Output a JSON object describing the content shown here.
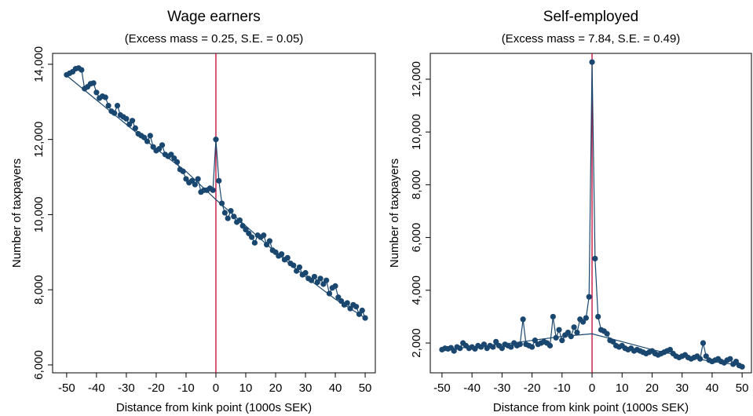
{
  "chart_data": [
    {
      "type": "line",
      "title": "Wage earners",
      "subtitle": "(Excess mass = 0.25, S.E. = 0.05)",
      "x_label": "Distance from kink point (1000s SEK)",
      "y_label": "Number of taxpayers",
      "xlim": [
        -54.7,
        53.4
      ],
      "ylim": [
        5790,
        14290
      ],
      "xticks": [
        -50,
        -40,
        -30,
        -20,
        -10,
        0,
        10,
        20,
        30,
        40,
        50
      ],
      "yticks": [
        {
          "value": 6000,
          "label": "6,000"
        },
        {
          "value": 8000,
          "label": "8,000"
        },
        {
          "value": 10000,
          "label": "10,000"
        },
        {
          "value": 12000,
          "label": "12,000"
        },
        {
          "value": 14000,
          "label": "14,000"
        }
      ],
      "vline": 0,
      "vline_color": "#c10534",
      "series": [
        {
          "color": "#1a476f",
          "markers": true,
          "x": [
            -50,
            -49,
            -48,
            -47,
            -46,
            -45,
            -44,
            -43,
            -42,
            -41,
            -40,
            -39,
            -38,
            -37,
            -36,
            -35,
            -34,
            -33,
            -32,
            -31,
            -30,
            -29,
            -28,
            -27,
            -26,
            -25,
            -24,
            -23,
            -22,
            -21,
            -20,
            -19,
            -18,
            -17,
            -16,
            -15,
            -14,
            -13,
            -12,
            -11,
            -10,
            -9,
            -8,
            -7,
            -6,
            -5,
            -4,
            -3,
            -2,
            -1,
            0,
            1,
            2,
            3,
            4,
            5,
            6,
            7,
            8,
            9,
            10,
            11,
            12,
            13,
            14,
            15,
            16,
            17,
            18,
            19,
            20,
            21,
            22,
            23,
            24,
            25,
            26,
            27,
            28,
            29,
            30,
            31,
            32,
            33,
            34,
            35,
            36,
            37,
            38,
            39,
            40,
            41,
            42,
            43,
            44,
            45,
            46,
            47,
            48,
            49,
            50
          ],
          "values": [
            13720,
            13760,
            13800,
            13880,
            13900,
            13850,
            13350,
            13400,
            13480,
            13500,
            13250,
            13100,
            13150,
            13120,
            12900,
            12750,
            12700,
            12900,
            12650,
            12600,
            12550,
            12400,
            12500,
            12300,
            12150,
            12100,
            12050,
            11950,
            12100,
            11800,
            11700,
            11750,
            11850,
            11600,
            11550,
            11600,
            11500,
            11400,
            11200,
            11150,
            10950,
            10850,
            10900,
            10800,
            10950,
            10600,
            10650,
            10650,
            10700,
            10650,
            12000,
            10900,
            10300,
            10050,
            9900,
            10100,
            9950,
            9800,
            9850,
            9700,
            9600,
            9500,
            9400,
            9250,
            9450,
            9400,
            9450,
            9200,
            9300,
            9050,
            9000,
            8900,
            8950,
            8800,
            8850,
            8700,
            8650,
            8500,
            8600,
            8400,
            8450,
            8300,
            8250,
            8350,
            8200,
            8300,
            8150,
            8250,
            7900,
            8050,
            8100,
            7800,
            7700,
            7600,
            7650,
            7500,
            7600,
            7550,
            7350,
            7450,
            7250
          ]
        },
        {
          "color": "#1a476f",
          "markers": false,
          "x": [
            -50,
            -40,
            -30,
            -20,
            -10,
            0,
            10,
            20,
            30,
            40,
            50
          ],
          "values": [
            13700,
            13050,
            12400,
            11750,
            11150,
            10400,
            9700,
            9000,
            8350,
            7750,
            7250
          ]
        }
      ]
    },
    {
      "type": "line",
      "title": "Self-employed",
      "subtitle": "(Excess mass = 7.84, S.E. = 0.49)",
      "x_label": "Distance from kink point (1000s SEK)",
      "y_label": "Number of taxpayers",
      "xlim": [
        -53.9,
        53.1
      ],
      "ylim": [
        870,
        12980
      ],
      "xticks": [
        -50,
        -40,
        -30,
        -20,
        -10,
        0,
        10,
        20,
        30,
        40,
        50
      ],
      "yticks": [
        {
          "value": 2000,
          "label": "2,000"
        },
        {
          "value": 4000,
          "label": "4,000"
        },
        {
          "value": 6000,
          "label": "6,000"
        },
        {
          "value": 8000,
          "label": "8,000"
        },
        {
          "value": 10000,
          "label": "10,000"
        },
        {
          "value": 12000,
          "label": "12,000"
        }
      ],
      "vline": 0,
      "vline_color": "#c10534",
      "series": [
        {
          "color": "#1a476f",
          "markers": true,
          "x": [
            -50,
            -49,
            -48,
            -47,
            -46,
            -45,
            -44,
            -43,
            -42,
            -41,
            -40,
            -39,
            -38,
            -37,
            -36,
            -35,
            -34,
            -33,
            -32,
            -31,
            -30,
            -29,
            -28,
            -27,
            -26,
            -25,
            -24,
            -23,
            -22,
            -21,
            -20,
            -19,
            -18,
            -17,
            -16,
            -15,
            -14,
            -13,
            -12,
            -11,
            -10,
            -9,
            -8,
            -7,
            -6,
            -5,
            -4,
            -3,
            -2,
            -1,
            0,
            1,
            2,
            3,
            4,
            5,
            6,
            7,
            8,
            9,
            10,
            11,
            12,
            13,
            14,
            15,
            16,
            17,
            18,
            19,
            20,
            21,
            22,
            23,
            24,
            25,
            26,
            27,
            28,
            29,
            30,
            31,
            32,
            33,
            34,
            35,
            36,
            37,
            38,
            39,
            40,
            41,
            42,
            43,
            44,
            45,
            46,
            47,
            48,
            49,
            50
          ],
          "values": [
            1750,
            1800,
            1780,
            1820,
            1700,
            1850,
            1800,
            2000,
            1900,
            1800,
            1850,
            1780,
            1900,
            1850,
            1950,
            1800,
            1900,
            1850,
            2050,
            1900,
            1800,
            1950,
            1900,
            1850,
            2000,
            1900,
            1950,
            2900,
            1950,
            1900,
            1850,
            2100,
            1950,
            2000,
            2050,
            2000,
            1900,
            3000,
            2200,
            2500,
            2100,
            2300,
            2400,
            2250,
            2600,
            2400,
            2900,
            2800,
            2950,
            3750,
            12650,
            5200,
            3000,
            2500,
            2450,
            2350,
            2100,
            2050,
            1900,
            1850,
            1900,
            1800,
            1750,
            1800,
            1700,
            1750,
            1700,
            1650,
            1600,
            1650,
            1700,
            1600,
            1550,
            1600,
            1650,
            1700,
            1750,
            1600,
            1500,
            1450,
            1500,
            1550,
            1450,
            1400,
            1450,
            1500,
            1400,
            2000,
            1500,
            1350,
            1300,
            1350,
            1400,
            1300,
            1250,
            1350,
            1400,
            1200,
            1300,
            1150,
            1100
          ]
        },
        {
          "color": "#1a476f",
          "markers": false,
          "x": [
            -50,
            -40,
            -30,
            -20,
            -10,
            0,
            10,
            20,
            30,
            40,
            50
          ],
          "values": [
            1750,
            1850,
            1950,
            2100,
            2250,
            2350,
            2050,
            1750,
            1500,
            1300,
            1150
          ]
        }
      ]
    }
  ]
}
